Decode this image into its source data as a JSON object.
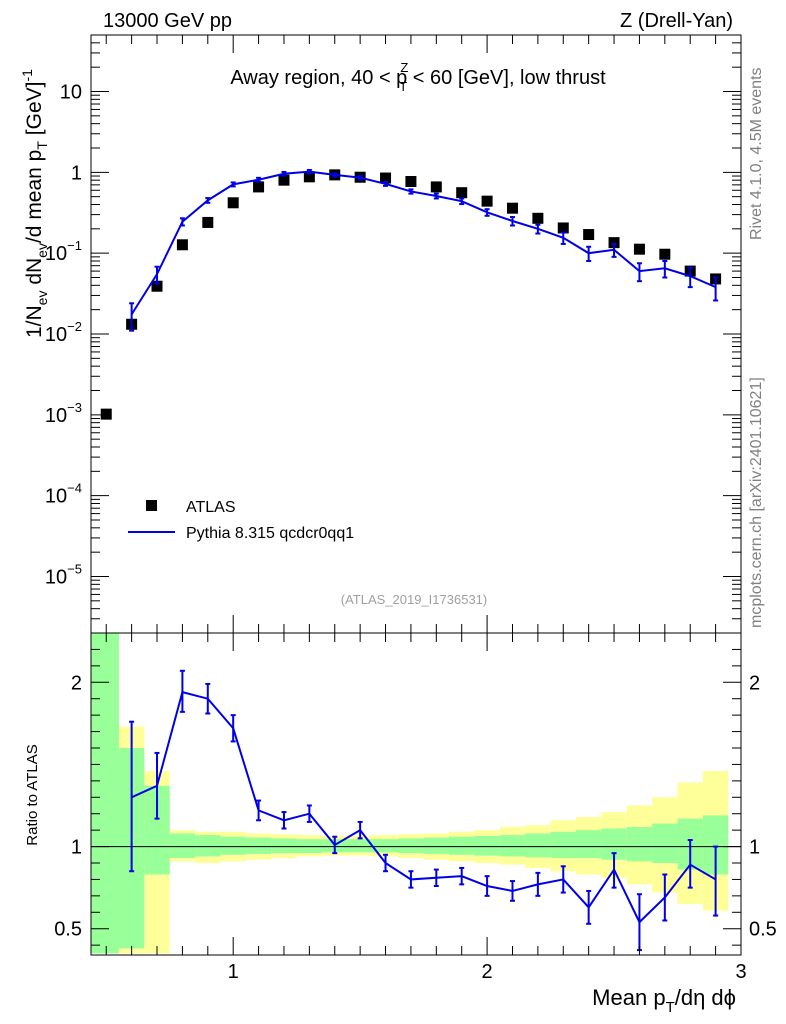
{
  "header": {
    "energy_label": "13000 GeV pp",
    "process_label": "Z (Drell-Yan)"
  },
  "side_labels": {
    "rivet": "Rivet 4.1.0,  4.5M events",
    "mcplots": "mcplots.cern.ch [arXiv:2401.10621]"
  },
  "chart_data": [
    {
      "type": "scatter",
      "panel": "main",
      "title_parts": {
        "prefix": "Away region, 40 < p",
        "sup": "Z",
        "sub": "T",
        "suffix": " < 60 [GeV], low thrust"
      },
      "ylabel": "1/N_ev dN_ev/d mean p_T [GeV]^-1",
      "yscale": "log",
      "ylim": [
        2e-06,
        50
      ],
      "xlim": [
        0.44,
        3.0
      ],
      "ytick_labels": [
        {
          "value": 10,
          "base": "10",
          "exp": ""
        },
        {
          "value": 1,
          "base": "1",
          "exp": ""
        },
        {
          "value": 0.1,
          "base": "10",
          "exp": "−1"
        },
        {
          "value": 0.01,
          "base": "10",
          "exp": "−2"
        },
        {
          "value": 0.001,
          "base": "10",
          "exp": "−3"
        },
        {
          "value": 0.0001,
          "base": "10",
          "exp": "−4"
        },
        {
          "value": 1e-05,
          "base": "10",
          "exp": "−5"
        }
      ],
      "legend_position": "bottom-left",
      "analysis_id": "(ATLAS_2019_I1736531)",
      "series": [
        {
          "name": "ATLAS",
          "color": "#000000",
          "marker": "square",
          "x": [
            0.5,
            0.6,
            0.7,
            0.8,
            0.9,
            1.0,
            1.1,
            1.2,
            1.3,
            1.4,
            1.5,
            1.6,
            1.7,
            1.8,
            1.9,
            2.0,
            2.1,
            2.2,
            2.3,
            2.4,
            2.5,
            2.6,
            2.7,
            2.8,
            2.9
          ],
          "y": [
            0.00102,
            0.0132,
            0.039,
            0.127,
            0.24,
            0.42,
            0.66,
            0.8,
            0.88,
            0.93,
            0.87,
            0.85,
            0.77,
            0.66,
            0.56,
            0.44,
            0.36,
            0.27,
            0.205,
            0.17,
            0.135,
            0.112,
            0.097,
            0.06,
            0.048
          ]
        },
        {
          "name": "Pythia 8.315 qcdcr0qq1",
          "color": "#0000e6",
          "marker": "line",
          "x": [
            0.6,
            0.7,
            0.8,
            0.9,
            1.0,
            1.1,
            1.2,
            1.3,
            1.4,
            1.5,
            1.6,
            1.7,
            1.8,
            1.9,
            2.0,
            2.1,
            2.2,
            2.3,
            2.4,
            2.5,
            2.6,
            2.7,
            2.8,
            2.9
          ],
          "y": [
            0.0175,
            0.055,
            0.245,
            0.45,
            0.71,
            0.81,
            0.96,
            1.02,
            0.93,
            0.86,
            0.72,
            0.58,
            0.51,
            0.44,
            0.32,
            0.25,
            0.2,
            0.155,
            0.1,
            0.11,
            0.06,
            0.065,
            0.052,
            0.038
          ],
          "err_lo": [
            0.0065,
            0.013,
            0.025,
            0.03,
            0.04,
            0.045,
            0.05,
            0.05,
            0.045,
            0.045,
            0.04,
            0.035,
            0.035,
            0.035,
            0.03,
            0.03,
            0.025,
            0.025,
            0.02,
            0.02,
            0.015,
            0.015,
            0.014,
            0.012
          ],
          "err_hi": [
            0.0065,
            0.013,
            0.025,
            0.03,
            0.04,
            0.045,
            0.05,
            0.05,
            0.045,
            0.045,
            0.04,
            0.035,
            0.035,
            0.035,
            0.03,
            0.03,
            0.025,
            0.025,
            0.02,
            0.02,
            0.015,
            0.015,
            0.014,
            0.012
          ]
        }
      ]
    },
    {
      "type": "line",
      "panel": "ratio",
      "ylabel": "Ratio to ATLAS",
      "xlabel_parts": {
        "prefix": "Mean p",
        "sub": "T",
        "suffix": "/dη dϕ"
      },
      "ylim": [
        0.34,
        2.3
      ],
      "xlim": [
        0.44,
        3.0
      ],
      "xtick_labels": [
        "1",
        "2",
        "3"
      ],
      "ytick_labels": [
        "2",
        "1",
        "0.5"
      ],
      "band_edges": [
        0.44,
        0.55,
        0.65,
        0.75,
        0.85,
        0.95,
        1.05,
        1.15,
        1.25,
        1.35,
        1.45,
        1.55,
        1.65,
        1.75,
        1.85,
        1.95,
        2.05,
        2.15,
        2.25,
        2.35,
        2.45,
        2.55,
        2.65,
        2.75,
        2.85,
        2.95
      ],
      "stat_band": {
        "color": "#99ff99",
        "lo": [
          0.35,
          0.38,
          0.83,
          0.93,
          0.94,
          0.95,
          0.955,
          0.96,
          0.96,
          0.965,
          0.965,
          0.965,
          0.96,
          0.955,
          0.95,
          0.945,
          0.94,
          0.935,
          0.93,
          0.93,
          0.92,
          0.91,
          0.9,
          0.86,
          0.83
        ],
        "hi": [
          2.3,
          1.6,
          1.37,
          1.08,
          1.07,
          1.06,
          1.055,
          1.05,
          1.045,
          1.045,
          1.045,
          1.045,
          1.05,
          1.055,
          1.06,
          1.065,
          1.07,
          1.08,
          1.09,
          1.1,
          1.11,
          1.12,
          1.14,
          1.17,
          1.19
        ]
      },
      "syst_band": {
        "color": "#ffff99",
        "lo": [
          0.35,
          0.35,
          0.35,
          0.91,
          0.9,
          0.91,
          0.92,
          0.93,
          0.94,
          0.945,
          0.945,
          0.94,
          0.93,
          0.92,
          0.91,
          0.9,
          0.89,
          0.87,
          0.85,
          0.83,
          0.81,
          0.77,
          0.72,
          0.65,
          0.61
        ],
        "hi": [
          2.3,
          1.73,
          1.46,
          1.1,
          1.09,
          1.09,
          1.08,
          1.075,
          1.07,
          1.065,
          1.065,
          1.07,
          1.075,
          1.08,
          1.09,
          1.1,
          1.12,
          1.13,
          1.16,
          1.18,
          1.21,
          1.25,
          1.3,
          1.39,
          1.46
        ]
      },
      "reference_line": 1,
      "series": [
        {
          "name": "Pythia 8.315 qcdcr0qq1",
          "color": "#0000e6",
          "x": [
            0.6,
            0.7,
            0.8,
            0.9,
            1.0,
            1.1,
            1.2,
            1.3,
            1.4,
            1.5,
            1.6,
            1.7,
            1.8,
            1.9,
            2.0,
            2.1,
            2.2,
            2.3,
            2.4,
            2.5,
            2.6,
            2.7,
            2.8,
            2.9
          ],
          "y": [
            1.3,
            1.37,
            1.94,
            1.9,
            1.72,
            1.22,
            1.16,
            1.2,
            1.01,
            1.1,
            0.9,
            0.8,
            0.81,
            0.82,
            0.76,
            0.73,
            0.77,
            0.8,
            0.63,
            0.86,
            0.54,
            0.69,
            0.89,
            0.8
          ],
          "err_lo": [
            0.45,
            0.2,
            0.12,
            0.09,
            0.08,
            0.06,
            0.05,
            0.05,
            0.05,
            0.05,
            0.05,
            0.05,
            0.05,
            0.05,
            0.06,
            0.06,
            0.07,
            0.08,
            0.1,
            0.11,
            0.17,
            0.14,
            0.14,
            0.22
          ],
          "err_hi": [
            0.46,
            0.2,
            0.13,
            0.09,
            0.08,
            0.06,
            0.05,
            0.05,
            0.05,
            0.05,
            0.05,
            0.05,
            0.05,
            0.05,
            0.06,
            0.06,
            0.07,
            0.08,
            0.1,
            0.1,
            0.17,
            0.14,
            0.15,
            0.2
          ]
        }
      ]
    }
  ]
}
